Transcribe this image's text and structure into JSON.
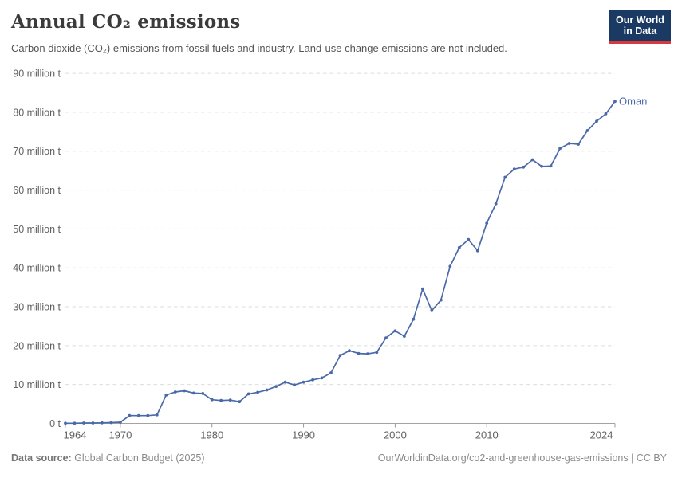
{
  "header": {
    "title": "Annual CO₂ emissions",
    "subtitle": "Carbon dioxide (CO₂) emissions from fossil fuels and industry. Land-use change emissions are not included.",
    "logo": {
      "line1": "Our World",
      "line2": "in Data"
    }
  },
  "chart_data": {
    "type": "line",
    "title": "Annual CO₂ emissions",
    "xlabel": "",
    "ylabel": "",
    "xlim": [
      1964,
      2024
    ],
    "ylim": [
      0,
      90
    ],
    "grid": "horizontal-dashed",
    "legend_position": "end-of-line",
    "x": [
      1964,
      1965,
      1966,
      1967,
      1968,
      1969,
      1970,
      1971,
      1972,
      1973,
      1974,
      1975,
      1976,
      1977,
      1978,
      1979,
      1980,
      1981,
      1982,
      1983,
      1984,
      1985,
      1986,
      1987,
      1988,
      1989,
      1990,
      1991,
      1992,
      1993,
      1994,
      1995,
      1996,
      1997,
      1998,
      1999,
      2000,
      2001,
      2002,
      2003,
      2004,
      2005,
      2006,
      2007,
      2008,
      2009,
      2010,
      2011,
      2012,
      2013,
      2014,
      2015,
      2016,
      2017,
      2018,
      2019,
      2020,
      2021,
      2022,
      2023,
      2024
    ],
    "series": [
      {
        "name": "Oman",
        "color": "#4a69a8",
        "values": [
          0.05,
          0.05,
          0.1,
          0.1,
          0.15,
          0.2,
          0.3,
          2.0,
          2.0,
          2.0,
          2.2,
          7.3,
          8.1,
          8.4,
          7.8,
          7.7,
          6.1,
          5.9,
          6.0,
          5.6,
          7.6,
          8.0,
          8.6,
          9.5,
          10.6,
          9.9,
          10.6,
          11.2,
          11.7,
          13.0,
          17.5,
          18.7,
          18.0,
          17.9,
          18.3,
          22.0,
          23.8,
          22.4,
          26.8,
          34.6,
          29.0,
          31.7,
          40.4,
          45.2,
          47.3,
          44.4,
          51.5,
          56.5,
          63.3,
          65.4,
          65.9,
          67.8,
          66.1,
          66.2,
          70.7,
          72.0,
          71.8,
          75.3,
          77.7,
          79.6,
          82.8
        ]
      }
    ],
    "yticks": [
      {
        "value": 0,
        "label": "0 t"
      },
      {
        "value": 10,
        "label": "10 million t"
      },
      {
        "value": 20,
        "label": "20 million t"
      },
      {
        "value": 30,
        "label": "30 million t"
      },
      {
        "value": 40,
        "label": "40 million t"
      },
      {
        "value": 50,
        "label": "50 million t"
      },
      {
        "value": 60,
        "label": "60 million t"
      },
      {
        "value": 70,
        "label": "70 million t"
      },
      {
        "value": 80,
        "label": "80 million t"
      },
      {
        "value": 90,
        "label": "90 million t"
      }
    ],
    "xticks": [
      {
        "value": 1964,
        "label": "1964"
      },
      {
        "value": 1970,
        "label": "1970"
      },
      {
        "value": 1980,
        "label": "1980"
      },
      {
        "value": 1990,
        "label": "1990"
      },
      {
        "value": 2000,
        "label": "2000"
      },
      {
        "value": 2010,
        "label": "2010"
      },
      {
        "value": 2024,
        "label": "2024"
      }
    ]
  },
  "footer": {
    "datasource_label": "Data source:",
    "datasource_value": " Global Carbon Budget (2025)",
    "link": "OurWorldinData.org/co2-and-greenhouse-gas-emissions | CC BY"
  },
  "colors": {
    "accent": "#4a69a8",
    "grid": "#dddddd",
    "axis": "#a3a3a3",
    "tick": "#999999",
    "logo_bg": "#1a3a63",
    "logo_red": "#d8393f"
  }
}
